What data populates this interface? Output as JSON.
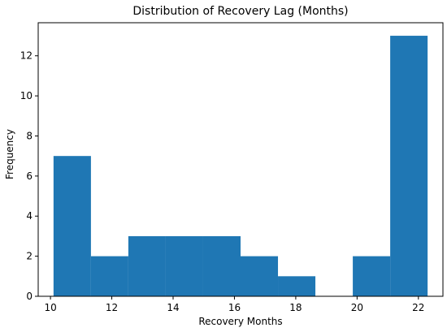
{
  "chart_data": {
    "type": "bar",
    "subtype": "histogram",
    "title": "Distribution of Recovery Lag (Months)",
    "xlabel": "Recovery Months",
    "ylabel": "Frequency",
    "xlim": [
      9.6,
      22.8
    ],
    "ylim": [
      0,
      13.65
    ],
    "xticks": [
      10,
      12,
      14,
      16,
      18,
      20,
      22
    ],
    "yticks": [
      0,
      2,
      4,
      6,
      8,
      10,
      12
    ],
    "bins": [
      {
        "x0": 10.1,
        "x1": 11.32,
        "count": 7
      },
      {
        "x0": 11.32,
        "x1": 12.54,
        "count": 2
      },
      {
        "x0": 12.54,
        "x1": 13.76,
        "count": 3
      },
      {
        "x0": 13.76,
        "x1": 14.98,
        "count": 3
      },
      {
        "x0": 14.98,
        "x1": 16.2,
        "count": 3
      },
      {
        "x0": 16.2,
        "x1": 17.42,
        "count": 2
      },
      {
        "x0": 17.42,
        "x1": 18.64,
        "count": 1
      },
      {
        "x0": 18.64,
        "x1": 19.86,
        "count": 0
      },
      {
        "x0": 19.86,
        "x1": 21.08,
        "count": 2
      },
      {
        "x0": 21.08,
        "x1": 22.3,
        "count": 13
      }
    ],
    "bar_color": "#1f77b4",
    "grid": false,
    "legend": "none"
  }
}
